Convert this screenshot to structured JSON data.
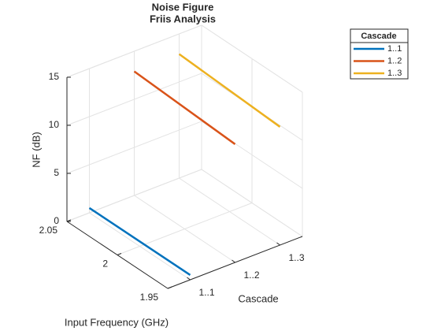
{
  "chart_data": {
    "type": "line3d",
    "title": [
      "Noise Figure",
      "Friis Analysis"
    ],
    "xlabel": "Input Frequency (GHz)",
    "ylabel": "Cascade",
    "zlabel": "NF (dB)",
    "x": [
      1.95,
      2.05
    ],
    "xlim": [
      1.95,
      2.05
    ],
    "xticks": [
      1.95,
      2,
      2.05
    ],
    "categories": [
      "1..1",
      "1..2",
      "1..3"
    ],
    "zlim": [
      0,
      15
    ],
    "zticks": [
      0,
      5,
      10,
      15
    ],
    "grid": true,
    "legend_title": "Cascade",
    "legend": "upper-right",
    "series": [
      {
        "name": "1..1",
        "color": "#0072BD",
        "values": [
          0.5,
          0.5
        ]
      },
      {
        "name": "1..2",
        "color": "#D95319",
        "values": [
          12.3,
          12.9
        ]
      },
      {
        "name": "1..3",
        "color": "#EDB120",
        "values": [
          12.3,
          12.9
        ]
      }
    ]
  }
}
